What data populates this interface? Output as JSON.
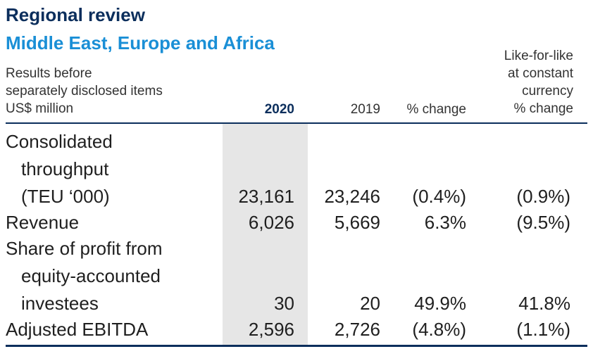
{
  "heading": {
    "title": "Regional review",
    "subtitle": "Middle East, Europe and Africa"
  },
  "table": {
    "header": {
      "left_lines": [
        "Results before",
        "separately disclosed items",
        "US$ million"
      ],
      "col_2020": "2020",
      "col_2019": "2019",
      "col_change": "% change",
      "col_lfl_lines": [
        "Like-for-like",
        "at constant",
        "currency",
        "% change"
      ]
    },
    "rows": [
      {
        "label_lines": [
          "Consolidated",
          "throughput",
          "(TEU ‘000)"
        ],
        "v2020": "23,161",
        "v2019": "23,246",
        "change": "(0.4%)",
        "lfl": "(0.9%)"
      },
      {
        "label_lines": [
          "Revenue"
        ],
        "v2020": "6,026",
        "v2019": "5,669",
        "change": "6.3%",
        "lfl": "(9.5%)"
      },
      {
        "label_lines": [
          "Share of profit from",
          "equity-accounted",
          "investees"
        ],
        "v2020": "30",
        "v2019": "20",
        "change": "49.9%",
        "lfl": "41.8%"
      },
      {
        "label_lines": [
          "Adjusted EBITDA"
        ],
        "v2020": "2,596",
        "v2019": "2,726",
        "change": "(4.8%)",
        "lfl": "(1.1%)"
      }
    ]
  },
  "colors": {
    "navy": "#0b2e5c",
    "accent_blue": "#1a8fd6",
    "column_shade": "#e6e6e6"
  }
}
